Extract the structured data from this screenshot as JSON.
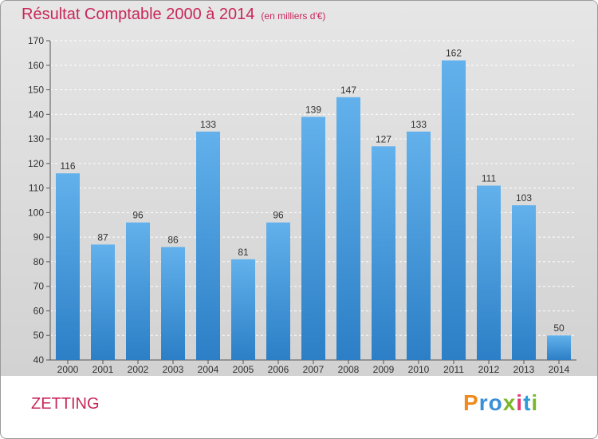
{
  "header": {
    "title": "Résultat Comptable 2000 à 2014",
    "subtitle": "(en milliers d'€)"
  },
  "footer": {
    "commune": "ZETTING",
    "logo": "Proxiti"
  },
  "colors": {
    "title": "#c8275a",
    "bar_top": "#62b1ec",
    "bar_bottom": "#2c7fc6",
    "logo_letters": [
      "#f08a1c",
      "#3a8fd6",
      "#3a8fd6",
      "#7ab82a",
      "#e23a74",
      "#2f9bd6",
      "#7ab82a"
    ]
  },
  "chart_data": {
    "type": "bar",
    "title": "Résultat Comptable 2000 à 2014",
    "xlabel": "",
    "ylabel": "",
    "categories": [
      "2000",
      "2001",
      "2002",
      "2003",
      "2004",
      "2005",
      "2006",
      "2007",
      "2008",
      "2009",
      "2010",
      "2011",
      "2012",
      "2013",
      "2014"
    ],
    "values": [
      116,
      87,
      96,
      86,
      133,
      81,
      96,
      139,
      147,
      127,
      133,
      162,
      111,
      103,
      50
    ],
    "ylim": [
      40,
      170
    ],
    "yticks": [
      40,
      50,
      60,
      70,
      80,
      90,
      100,
      110,
      120,
      130,
      140,
      150,
      160,
      170
    ],
    "grid": true,
    "legend": "none"
  }
}
